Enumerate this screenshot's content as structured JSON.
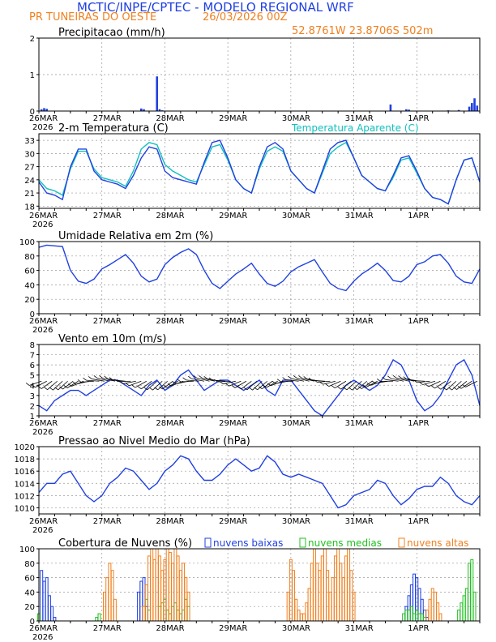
{
  "header": {
    "title": "MCTIC/INPE/CPTEC - MODELO REGIONAL WRF",
    "location": "PR TUNEIRAS DO OESTE",
    "run": "26/03/2026 00Z",
    "coords": "52.8761W 23.8706S 502m"
  },
  "colors": {
    "blue": "#2040e0",
    "orange": "#f08020",
    "cyan": "#10c0c0",
    "green": "#20c020",
    "grid": "#999999"
  },
  "x_axis": {
    "labels": [
      "26MAR",
      "27MAR",
      "28MAR",
      "29MAR",
      "30MAR",
      "31MAR",
      "1APR"
    ],
    "year": "2026",
    "label_hours": [
      0,
      24,
      48,
      72,
      96,
      120,
      144
    ],
    "range_hours": [
      0,
      168
    ]
  },
  "chart_data": [
    {
      "type": "bar",
      "id": "precip",
      "title": "Precipitacao (mm/h)",
      "ylim": [
        0,
        2
      ],
      "yticks": [
        0,
        1,
        2
      ],
      "x": [
        1,
        2,
        3,
        18,
        39,
        40,
        45,
        46,
        47,
        134,
        140,
        141,
        156,
        160,
        164,
        165,
        166,
        167
      ],
      "values": [
        0.05,
        0.08,
        0.06,
        0.01,
        0.07,
        0.05,
        0.95,
        0.05,
        0.02,
        0.18,
        0.05,
        0.04,
        0.02,
        0.03,
        0.12,
        0.22,
        0.35,
        0.15
      ],
      "series_name": "Precipitacao"
    },
    {
      "type": "line",
      "id": "temp",
      "title": "2-m Temperatura (C)",
      "legend": "Temperatura Aparente (C)",
      "ylim": [
        17.5,
        34.5
      ],
      "yticks": [
        18,
        21,
        24,
        27,
        30,
        33
      ],
      "x": [
        0,
        3,
        6,
        9,
        12,
        15,
        18,
        21,
        24,
        27,
        30,
        33,
        36,
        39,
        42,
        45,
        48,
        51,
        54,
        57,
        60,
        63,
        66,
        69,
        72,
        75,
        78,
        81,
        84,
        87,
        90,
        93,
        96,
        99,
        102,
        105,
        108,
        111,
        114,
        117,
        120,
        123,
        126,
        129,
        132,
        135,
        138,
        141,
        144,
        147,
        150,
        153,
        156,
        159,
        162,
        165,
        168
      ],
      "series": [
        {
          "name": "2-m Temperatura",
          "values": [
            23.5,
            21,
            20.5,
            19.5,
            27,
            31,
            31,
            26,
            24,
            23.5,
            23,
            22,
            25,
            29,
            31.5,
            31,
            26,
            24.5,
            24,
            23.5,
            23,
            28,
            32.5,
            33,
            29,
            24,
            22,
            21,
            27,
            31.5,
            32.5,
            31,
            26,
            24,
            22,
            21,
            26,
            31,
            32.5,
            33,
            29,
            25,
            23.5,
            22,
            21.5,
            25,
            29,
            29.5,
            26,
            22,
            20,
            19.5,
            18.5,
            24,
            28.5,
            29,
            23.5
          ]
        },
        {
          "name": "Temperatura Aparente",
          "values": [
            24,
            22,
            21.5,
            20.5,
            26.5,
            30.5,
            30.5,
            26.5,
            24.5,
            24,
            23.5,
            22.5,
            26,
            31,
            32.5,
            32,
            27.5,
            26,
            25,
            24,
            23.5,
            27.5,
            31.5,
            32,
            28.5,
            24,
            22,
            21,
            26.5,
            30.5,
            31.5,
            30.5,
            26,
            24,
            22,
            21,
            25.5,
            30,
            31.5,
            32.5,
            29,
            25,
            23.5,
            22,
            21.5,
            24.5,
            28.5,
            29,
            25.5,
            22,
            20,
            19.5,
            18.5,
            24,
            28.5,
            29,
            23.5
          ]
        }
      ]
    },
    {
      "type": "line",
      "id": "rh",
      "title": "Umidade Relativa em 2m (%)",
      "ylim": [
        0,
        100
      ],
      "yticks": [
        0,
        20,
        40,
        60,
        80,
        100
      ],
      "x": [
        0,
        3,
        6,
        9,
        12,
        15,
        18,
        21,
        24,
        27,
        30,
        33,
        36,
        39,
        42,
        45,
        48,
        51,
        54,
        57,
        60,
        63,
        66,
        69,
        72,
        75,
        78,
        81,
        84,
        87,
        90,
        93,
        96,
        99,
        102,
        105,
        108,
        111,
        114,
        117,
        120,
        123,
        126,
        129,
        132,
        135,
        138,
        141,
        144,
        147,
        150,
        153,
        156,
        159,
        162,
        165,
        168
      ],
      "series": [
        {
          "name": "Umidade Relativa",
          "values": [
            92,
            95,
            94,
            93,
            60,
            45,
            42,
            48,
            62,
            68,
            75,
            82,
            70,
            52,
            44,
            48,
            68,
            78,
            85,
            90,
            82,
            60,
            42,
            35,
            45,
            55,
            62,
            70,
            55,
            42,
            38,
            45,
            58,
            65,
            70,
            75,
            58,
            42,
            35,
            32,
            45,
            55,
            62,
            70,
            60,
            46,
            44,
            52,
            68,
            72,
            80,
            82,
            70,
            52,
            44,
            42,
            62
          ]
        }
      ]
    },
    {
      "type": "line",
      "id": "wind",
      "title": "Vento em 10m (m/s)",
      "ylim": [
        1,
        8
      ],
      "yticks": [
        1,
        2,
        3,
        4,
        5,
        6,
        7,
        8
      ],
      "barbs_level": 4.4,
      "x": [
        0,
        3,
        6,
        9,
        12,
        15,
        18,
        21,
        24,
        27,
        30,
        33,
        36,
        39,
        42,
        45,
        48,
        51,
        54,
        57,
        60,
        63,
        66,
        69,
        72,
        75,
        78,
        81,
        84,
        87,
        90,
        93,
        96,
        99,
        102,
        105,
        108,
        111,
        114,
        117,
        120,
        123,
        126,
        129,
        132,
        135,
        138,
        141,
        144,
        147,
        150,
        153,
        156,
        159,
        162,
        165,
        168
      ],
      "series": [
        {
          "name": "Vento",
          "values": [
            2,
            1.5,
            2.5,
            3,
            3.5,
            3.5,
            3,
            3.5,
            4,
            4.5,
            4.5,
            4,
            3.5,
            3,
            4,
            4.5,
            3.5,
            4,
            5,
            5.5,
            4.5,
            3.5,
            4,
            4.5,
            4.5,
            4,
            3.5,
            4,
            4.5,
            3.5,
            3,
            4.5,
            4.5,
            3.5,
            2.5,
            1.5,
            1,
            2,
            3,
            4,
            4.5,
            4,
            3.5,
            4,
            5,
            6.5,
            6,
            4.5,
            2.5,
            1.5,
            2,
            3,
            4.5,
            6,
            6.5,
            5,
            2
          ]
        }
      ]
    },
    {
      "type": "line",
      "id": "pres",
      "title": "Pressao ao Nivel Medio do Mar (hPa)",
      "ylim": [
        1009,
        1020
      ],
      "yticks": [
        1010,
        1012,
        1014,
        1016,
        1018,
        1020
      ],
      "x": [
        0,
        3,
        6,
        9,
        12,
        15,
        18,
        21,
        24,
        27,
        30,
        33,
        36,
        39,
        42,
        45,
        48,
        51,
        54,
        57,
        60,
        63,
        66,
        69,
        72,
        75,
        78,
        81,
        84,
        87,
        90,
        93,
        96,
        99,
        102,
        105,
        108,
        111,
        114,
        117,
        120,
        123,
        126,
        129,
        132,
        135,
        138,
        141,
        144,
        147,
        150,
        153,
        156,
        159,
        162,
        165,
        168
      ],
      "series": [
        {
          "name": "Pressao",
          "values": [
            1012.5,
            1014,
            1014,
            1015.5,
            1016,
            1014,
            1012,
            1011,
            1012,
            1014,
            1015,
            1016.5,
            1016,
            1014.5,
            1013,
            1014,
            1016,
            1017,
            1018.5,
            1018,
            1016,
            1014.5,
            1014.5,
            1015.5,
            1017,
            1018,
            1017,
            1016,
            1016.5,
            1018.5,
            1017.5,
            1015.5,
            1015,
            1015.5,
            1015,
            1014.5,
            1014,
            1012,
            1010,
            1010.5,
            1012,
            1012.5,
            1013,
            1014.5,
            1014,
            1012,
            1010.5,
            1011.5,
            1013,
            1013.5,
            1013.5,
            1015,
            1014,
            1012,
            1011,
            1010.5,
            1012
          ]
        }
      ]
    },
    {
      "type": "bar",
      "id": "clouds",
      "title": "Cobertura de Nuvens (%)",
      "legend": [
        "nuvens baixas",
        "nuvens medias",
        "nuvens altas"
      ],
      "ylim": [
        0,
        100
      ],
      "yticks": [
        0,
        20,
        40,
        60,
        80,
        100
      ],
      "series": [
        {
          "name": "nuvens baixas",
          "x": [
            1,
            2,
            3,
            4,
            5,
            6,
            38,
            39,
            40,
            41,
            140,
            141,
            142,
            143,
            144,
            145,
            146,
            147,
            148
          ],
          "values": [
            70,
            55,
            60,
            35,
            20,
            5,
            40,
            55,
            60,
            20,
            20,
            35,
            50,
            65,
            60,
            45,
            30,
            15,
            5
          ]
        },
        {
          "name": "nuvens medias",
          "x": [
            0,
            22,
            23,
            41,
            42,
            46,
            47,
            48,
            49,
            50,
            51,
            52,
            53,
            54,
            55,
            56,
            57,
            139,
            140,
            141,
            142,
            143,
            144,
            145,
            146,
            147,
            160,
            161,
            162,
            163,
            164,
            165,
            166
          ],
          "values": [
            10,
            5,
            10,
            30,
            15,
            20,
            25,
            30,
            15,
            10,
            20,
            25,
            15,
            10,
            15,
            30,
            20,
            10,
            15,
            15,
            20,
            10,
            15,
            10,
            10,
            5,
            15,
            25,
            35,
            45,
            80,
            85,
            40
          ]
        },
        {
          "name": "nuvens altas",
          "x": [
            25,
            26,
            27,
            28,
            29,
            40,
            41,
            42,
            43,
            44,
            45,
            46,
            47,
            48,
            49,
            50,
            51,
            52,
            53,
            54,
            55,
            56,
            57,
            95,
            96,
            97,
            98,
            99,
            100,
            101,
            102,
            103,
            104,
            105,
            106,
            107,
            108,
            109,
            110,
            111,
            112,
            113,
            114,
            115,
            116,
            117,
            118,
            119,
            120,
            148,
            149,
            150,
            151,
            152,
            153
          ],
          "values": [
            40,
            60,
            80,
            70,
            30,
            20,
            50,
            90,
            100,
            85,
            100,
            90,
            70,
            85,
            100,
            95,
            80,
            100,
            90,
            70,
            80,
            60,
            40,
            40,
            85,
            70,
            30,
            15,
            10,
            10,
            25,
            45,
            80,
            100,
            80,
            70,
            90,
            100,
            70,
            40,
            60,
            90,
            100,
            80,
            60,
            90,
            100,
            70,
            40,
            15,
            30,
            45,
            40,
            25,
            10
          ]
        }
      ]
    }
  ]
}
